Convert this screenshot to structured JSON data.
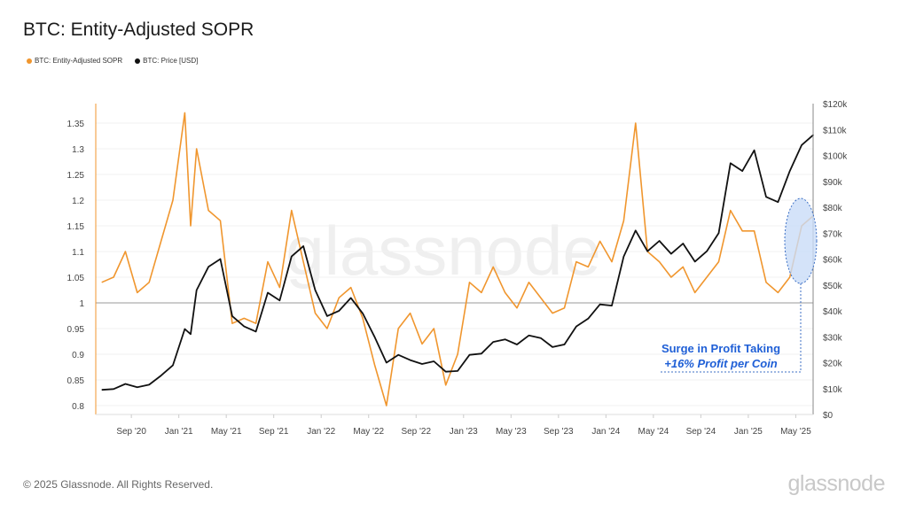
{
  "title": "BTC: Entity-Adjusted SOPR",
  "footer": "© 2025 Glassnode. All Rights Reserved.",
  "logo_text": "glassnode",
  "watermark": "glassnode",
  "chart_data": {
    "type": "line",
    "title": "BTC: Entity-Adjusted SOPR",
    "legend_placement": "top-left",
    "grid": true,
    "x_ticks": [
      "Sep '20",
      "Jan '21",
      "May '21",
      "Sep '21",
      "Jan '22",
      "May '22",
      "Sep '22",
      "Jan '23",
      "May '23",
      "Sep '23",
      "Jan '24",
      "May '24",
      "Sep '24",
      "Jan '25",
      "May '25"
    ],
    "x_tick_dates": [
      "2020-09",
      "2021-01",
      "2021-05",
      "2021-09",
      "2022-01",
      "2022-05",
      "2022-09",
      "2023-01",
      "2023-05",
      "2023-09",
      "2024-01",
      "2024-05",
      "2024-09",
      "2025-01",
      "2025-05"
    ],
    "left_axis": {
      "ticks": [
        "0.8",
        "0.85",
        "0.9",
        "0.95",
        "1",
        "1.05",
        "1.1",
        "1.15",
        "1.2",
        "1.25",
        "1.3",
        "1.35"
      ],
      "range": [
        0.79,
        1.39
      ]
    },
    "right_axis": {
      "ticks": [
        "$0",
        "$10k",
        "$20k",
        "$30k",
        "$40k",
        "$50k",
        "$60k",
        "$70k",
        "$80k",
        "$90k",
        "$100k",
        "$110k",
        "$120k"
      ],
      "range": [
        0,
        120000
      ]
    },
    "reference_line": 1,
    "x": [
      "2020-06",
      "2020-07",
      "2020-08",
      "2020-09",
      "2020-10",
      "2020-11",
      "2020-12",
      "2021-01",
      "2021-01b",
      "2021-02",
      "2021-03",
      "2021-04",
      "2021-05",
      "2021-06",
      "2021-07",
      "2021-08",
      "2021-09",
      "2021-10",
      "2021-11",
      "2021-12",
      "2022-01",
      "2022-02",
      "2022-03",
      "2022-04",
      "2022-05",
      "2022-06",
      "2022-07",
      "2022-08",
      "2022-09",
      "2022-10",
      "2022-11",
      "2022-12",
      "2023-01",
      "2023-02",
      "2023-03",
      "2023-04",
      "2023-05",
      "2023-06",
      "2023-07",
      "2023-08",
      "2023-09",
      "2023-10",
      "2023-11",
      "2023-12",
      "2024-01",
      "2024-02",
      "2024-03",
      "2024-04",
      "2024-05",
      "2024-06",
      "2024-07",
      "2024-08",
      "2024-09",
      "2024-10",
      "2024-11",
      "2024-12",
      "2025-01",
      "2025-02",
      "2025-03",
      "2025-04",
      "2025-05",
      "2025-06"
    ],
    "series": [
      {
        "name": "BTC: Entity-Adjusted SOPR",
        "color": "#f0962e",
        "axis": "left",
        "values": [
          1.04,
          1.05,
          1.1,
          1.02,
          1.04,
          1.12,
          1.2,
          1.37,
          1.15,
          1.3,
          1.18,
          1.16,
          0.96,
          0.97,
          0.96,
          1.08,
          1.03,
          1.18,
          1.08,
          0.98,
          0.95,
          1.01,
          1.03,
          0.97,
          0.88,
          0.8,
          0.95,
          0.98,
          0.92,
          0.95,
          0.84,
          0.9,
          1.04,
          1.02,
          1.07,
          1.02,
          0.99,
          1.04,
          1.01,
          0.98,
          0.99,
          1.08,
          1.07,
          1.12,
          1.08,
          1.16,
          1.35,
          1.1,
          1.08,
          1.05,
          1.07,
          1.02,
          1.05,
          1.08,
          1.18,
          1.14,
          1.14,
          1.04,
          1.02,
          1.05,
          1.15,
          1.17
        ]
      },
      {
        "name": "BTC: Price [USD]",
        "color": "#111111",
        "axis": "right",
        "values": [
          9500,
          9800,
          11800,
          10500,
          11500,
          15000,
          19000,
          33000,
          31000,
          48000,
          57000,
          60000,
          38000,
          34000,
          32000,
          47000,
          44000,
          61000,
          65000,
          48000,
          38000,
          40000,
          45000,
          39000,
          30000,
          20000,
          23000,
          21000,
          19500,
          20500,
          16500,
          16800,
          23000,
          23500,
          28000,
          29000,
          27000,
          30500,
          29500,
          26000,
          27000,
          34000,
          37000,
          42500,
          42000,
          61000,
          71000,
          63000,
          67000,
          62000,
          66000,
          59000,
          63000,
          70000,
          97000,
          94000,
          102000,
          84000,
          82000,
          94000,
          104000,
          108000
        ]
      }
    ],
    "annotation": {
      "line1": "Surge in Profit Taking",
      "line2": "+16% Profit per Coin"
    }
  }
}
